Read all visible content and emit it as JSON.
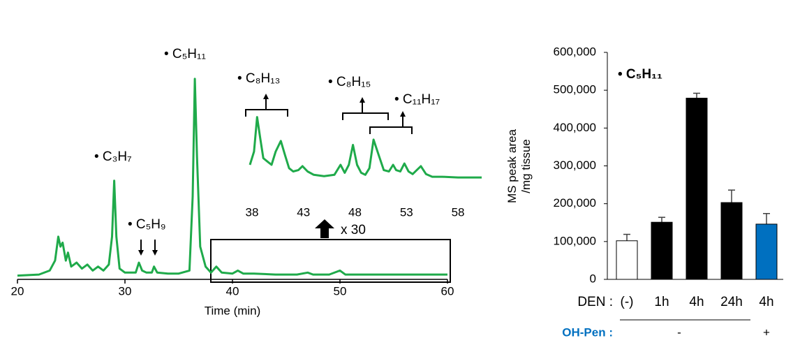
{
  "chart_data": [
    {
      "type": "line",
      "xlabel": "Time (min)",
      "color": "#1faa4a",
      "xlim": [
        20,
        60
      ],
      "xticks": [
        20,
        30,
        40,
        50,
        60
      ],
      "ylim": [
        0,
        100
      ],
      "x": [
        20,
        22,
        23,
        23.5,
        23.8,
        24,
        24.2,
        24.5,
        24.7,
        25,
        25.5,
        26,
        26.5,
        27,
        27.5,
        28,
        28.5,
        28.8,
        29,
        29.2,
        29.5,
        30,
        31,
        31.3,
        31.6,
        32,
        32.5,
        32.7,
        33,
        34,
        35,
        36,
        36.3,
        36.5,
        36.7,
        37,
        37.5,
        38,
        38.5,
        39,
        40,
        40.5,
        41,
        42,
        44,
        46,
        47,
        47.5,
        49,
        50,
        50.5,
        52,
        55,
        60
      ],
      "values": [
        0.5,
        1,
        3,
        8,
        20,
        15,
        17,
        8,
        12,
        5,
        7,
        4,
        6,
        3,
        5,
        3,
        6,
        20,
        48,
        20,
        4,
        2,
        2,
        7,
        3,
        2,
        2,
        5,
        2,
        1.5,
        1.5,
        3,
        40,
        99,
        60,
        15,
        5,
        2,
        5,
        2,
        1.5,
        3,
        1.5,
        1.5,
        1,
        1,
        2,
        1,
        1,
        3,
        1,
        1,
        1,
        1
      ],
      "annotations": [
        "• C₅H₁₁",
        "• C₃H₇",
        "• C₅H₉",
        "x 30"
      ]
    },
    {
      "type": "line",
      "color": "#1faa4a",
      "xlim": [
        37.8,
        60.3
      ],
      "xticks": [
        38,
        43,
        48,
        53,
        58
      ],
      "ylim": [
        0,
        100
      ],
      "x": [
        37.8,
        38.2,
        38.5,
        38.8,
        39.1,
        39.5,
        39.9,
        40.3,
        40.8,
        41.2,
        41.6,
        42,
        42.5,
        42.9,
        43.4,
        44,
        45,
        46,
        46.6,
        47,
        47.4,
        47.8,
        48.2,
        48.6,
        49,
        49.4,
        49.8,
        50.3,
        50.8,
        51.3,
        51.7,
        52,
        52.4,
        52.8,
        53.2,
        53.6,
        54,
        54.4,
        54.9,
        55.5,
        56.5,
        58,
        60.3
      ],
      "values": [
        20,
        40,
        92,
        60,
        30,
        25,
        20,
        40,
        56,
        35,
        15,
        10,
        12,
        18,
        10,
        5,
        3,
        5,
        20,
        8,
        20,
        50,
        20,
        8,
        5,
        15,
        58,
        35,
        12,
        10,
        20,
        12,
        10,
        22,
        10,
        6,
        12,
        18,
        6,
        2,
        2,
        1,
        1
      ],
      "annotations": [
        "• C₈H₁₃",
        "• C₈H₁₅",
        "• C₁₁H₁₇"
      ]
    },
    {
      "type": "bar",
      "ylabel": [
        "MS peak area",
        "/mg tissue"
      ],
      "annotation": "• C₅H₁₁",
      "categories": [
        "(-)",
        "1h",
        "4h",
        "24h",
        "4h"
      ],
      "values": [
        102000,
        151000,
        479000,
        203000,
        146000
      ],
      "errors": [
        17000,
        13000,
        13000,
        33000,
        28000
      ],
      "colors": [
        "#ffffff",
        "#000000",
        "#000000",
        "#000000",
        "#0070c0"
      ],
      "ylim": [
        0,
        600000
      ],
      "yticks": [
        {
          "value": 0,
          "label": "0"
        },
        {
          "value": 100000,
          "label": "100,000"
        },
        {
          "value": 200000,
          "label": "200,000"
        },
        {
          "value": 300000,
          "label": "300,000"
        },
        {
          "value": 400000,
          "label": "400,000"
        },
        {
          "value": 500000,
          "label": "500,000"
        },
        {
          "value": 600000,
          "label": "600,000"
        }
      ],
      "row_labels": [
        "DEN :",
        "OH-Pen :"
      ],
      "row2_color": "#0070c0",
      "row2_values": [
        "-",
        "+"
      ]
    }
  ]
}
